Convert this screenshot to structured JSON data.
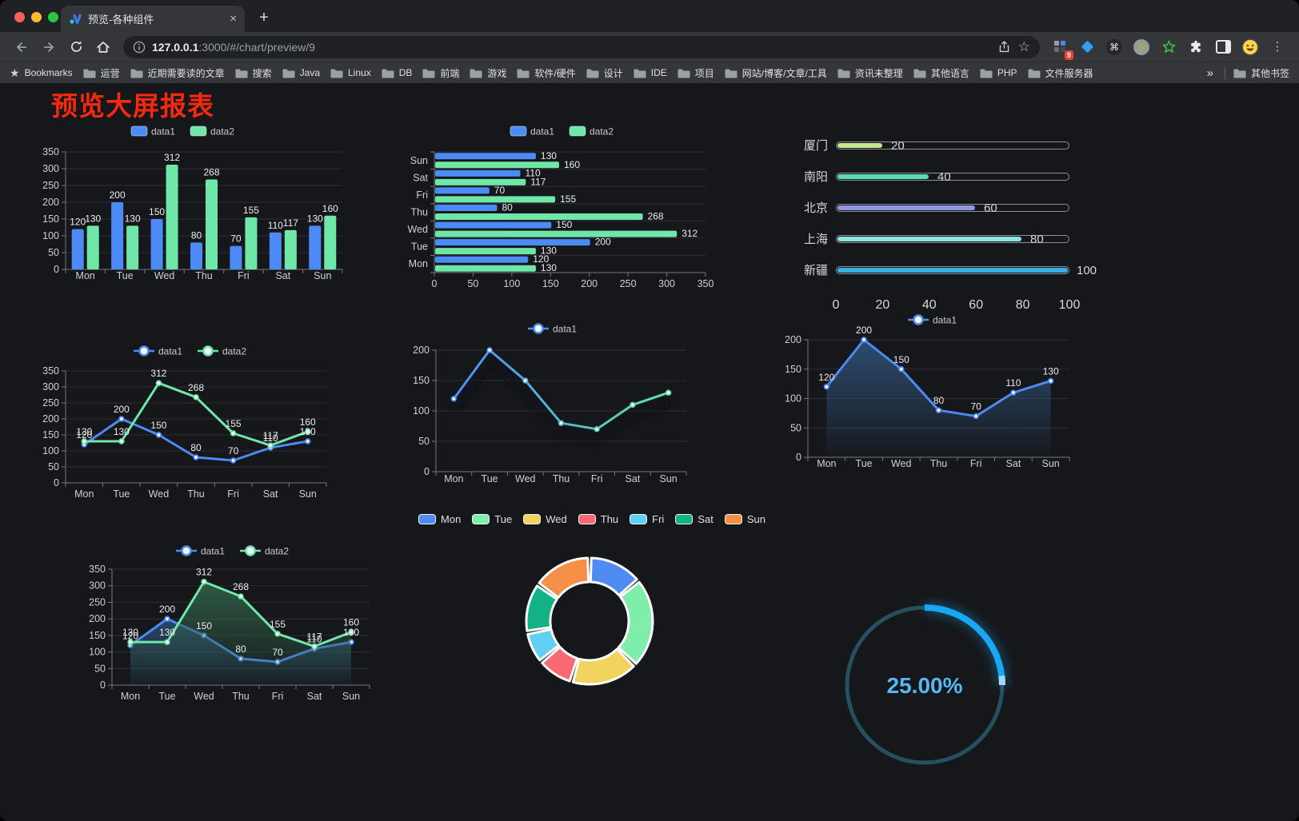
{
  "browser": {
    "traffic_lights": {
      "close": "#ff5f57",
      "minimize": "#febc2e",
      "zoom": "#28c840"
    },
    "tab": {
      "title": "预览-各种组件",
      "close_glyph": "×"
    },
    "new_tab_glyph": "+",
    "nav": {
      "url_host": "127.0.0.1",
      "url_rest": ":3000/#/chart/preview/9"
    },
    "extensions_badge": "9",
    "menu_glyph": "⋮",
    "star_glyph": "☆",
    "cmd_glyph": "⌘",
    "bookmarks_bar": {
      "bookmarks_label": "Bookmarks",
      "bookmarks_star": "★",
      "folders": [
        "运营",
        "近期需要读的文章",
        "搜索",
        "Java",
        "Linux",
        "DB",
        "前端",
        "游戏",
        "软件/硬件",
        "设计",
        "IDE",
        "项目",
        "网站/博客/文章/工具",
        "资讯未整理",
        "其他语言",
        "PHP",
        "文件服务器"
      ],
      "overflow": "»",
      "other_bookmarks": "其他书签"
    }
  },
  "page": {
    "title": "预览大屏报表",
    "title_color": "#f5290e",
    "background": "#16171b"
  },
  "colors": {
    "data1": "#4c8bf5",
    "data2": "#6fe7a8",
    "axis_label": "#cdd0d3",
    "grid_line": "#2d2f34",
    "axis_line": "#75787d",
    "value_label": "#eceded",
    "legend_text": "#c9cbce"
  },
  "chart_data": [
    {
      "id": "grouped-bar",
      "type": "bar",
      "categories": [
        "Mon",
        "Tue",
        "Wed",
        "Thu",
        "Fri",
        "Sat",
        "Sun"
      ],
      "series": [
        {
          "name": "data1",
          "color": "#4c8bf5",
          "values": [
            120,
            200,
            150,
            80,
            70,
            110,
            130
          ]
        },
        {
          "name": "data2",
          "color": "#6fe7a8",
          "values": [
            130,
            130,
            312,
            268,
            155,
            117,
            160
          ]
        }
      ],
      "ylim": [
        0,
        350
      ],
      "yticks": [
        0,
        50,
        100,
        150,
        200,
        250,
        300,
        350
      ],
      "legend_position": "top",
      "data_labels": true
    },
    {
      "id": "horizontal-bar",
      "type": "bar",
      "orientation": "horizontal",
      "categories": [
        "Mon",
        "Tue",
        "Wed",
        "Thu",
        "Fri",
        "Sat",
        "Sun"
      ],
      "display_top_to_bottom": [
        "Sun",
        "Sat",
        "Fri",
        "Thu",
        "Wed",
        "Tue",
        "Mon"
      ],
      "series": [
        {
          "name": "data1",
          "color": "#4c8bf5",
          "values": [
            120,
            200,
            150,
            80,
            70,
            110,
            130
          ]
        },
        {
          "name": "data2",
          "color": "#6fe7a8",
          "values": [
            130,
            130,
            312,
            268,
            155,
            117,
            160
          ]
        }
      ],
      "xlim": [
        0,
        350
      ],
      "xticks": [
        0,
        50,
        100,
        150,
        200,
        250,
        300,
        350
      ],
      "legend_position": "top",
      "data_labels": true
    },
    {
      "id": "city-progress",
      "type": "bar",
      "items": [
        {
          "label": "厦门",
          "value": 20,
          "color": "#c5e88f"
        },
        {
          "label": "南阳",
          "value": 40,
          "color": "#58ddb0"
        },
        {
          "label": "北京",
          "value": 60,
          "color": "#9095e6"
        },
        {
          "label": "上海",
          "value": 80,
          "color": "#8fe3e0"
        },
        {
          "label": "新疆",
          "value": 100,
          "color": "#3ab0e6"
        }
      ],
      "xlim": [
        0,
        100
      ],
      "xticks": [
        0,
        20,
        40,
        60,
        80,
        100
      ]
    },
    {
      "id": "double-line",
      "type": "line",
      "categories": [
        "Mon",
        "Tue",
        "Wed",
        "Thu",
        "Fri",
        "Sat",
        "Sun"
      ],
      "series": [
        {
          "name": "data1",
          "color": "#4c8bf5",
          "values": [
            120,
            200,
            150,
            80,
            70,
            110,
            130
          ]
        },
        {
          "name": "data2",
          "color": "#6fe7a8",
          "values": [
            130,
            130,
            312,
            268,
            155,
            117,
            160
          ]
        }
      ],
      "ylim": [
        0,
        350
      ],
      "yticks": [
        0,
        50,
        100,
        150,
        200,
        250,
        300,
        350
      ],
      "legend_position": "top",
      "data_labels": true
    },
    {
      "id": "gradient-line",
      "type": "line",
      "categories": [
        "Mon",
        "Tue",
        "Wed",
        "Thu",
        "Fri",
        "Sat",
        "Sun"
      ],
      "series": [
        {
          "name": "data1",
          "gradient": [
            "#4a8cf5",
            "#5fe3a1"
          ],
          "values": [
            120,
            200,
            150,
            80,
            70,
            110,
            130
          ]
        }
      ],
      "ylim": [
        0,
        200
      ],
      "yticks": [
        0,
        50,
        100,
        150,
        200
      ],
      "legend_position": "top",
      "data_labels": false
    },
    {
      "id": "area-line",
      "type": "area",
      "categories": [
        "Mon",
        "Tue",
        "Wed",
        "Thu",
        "Fri",
        "Sat",
        "Sun"
      ],
      "series": [
        {
          "name": "data1",
          "color": "#4c8bf5",
          "area_color": "#31567f",
          "values": [
            120,
            200,
            150,
            80,
            70,
            110,
            130
          ]
        }
      ],
      "ylim": [
        0,
        200
      ],
      "yticks": [
        0,
        50,
        100,
        150,
        200
      ],
      "legend_position": "top",
      "data_labels": true
    },
    {
      "id": "double-area",
      "type": "area",
      "categories": [
        "Mon",
        "Tue",
        "Wed",
        "Thu",
        "Fri",
        "Sat",
        "Sun"
      ],
      "series": [
        {
          "name": "data1",
          "color": "#4c8bf5",
          "area_color": "#2c4f78",
          "values": [
            120,
            200,
            150,
            80,
            70,
            110,
            130
          ]
        },
        {
          "name": "data2",
          "color": "#6fe7a8",
          "area_color": "#2f6148",
          "values": [
            130,
            130,
            312,
            268,
            155,
            117,
            160
          ]
        }
      ],
      "ylim": [
        0,
        350
      ],
      "yticks": [
        0,
        50,
        100,
        150,
        200,
        250,
        300,
        350
      ],
      "legend_position": "top",
      "data_labels": true
    },
    {
      "id": "weekday-donut",
      "type": "pie",
      "categories": [
        "Mon",
        "Tue",
        "Wed",
        "Thu",
        "Fri",
        "Sat",
        "Sun"
      ],
      "values": [
        120,
        200,
        150,
        80,
        70,
        110,
        130
      ],
      "colors": [
        "#4e8bf5",
        "#80eeab",
        "#f2d35e",
        "#fa6a72",
        "#5fd0f2",
        "#12b286",
        "#f68f47"
      ],
      "legend_position": "top"
    },
    {
      "id": "percent-gauge",
      "type": "gauge",
      "value": 25,
      "label": "25.00%",
      "ring_color": "#17a7f3",
      "track_color": "#26505f",
      "text_color": "#55b7f4"
    }
  ]
}
